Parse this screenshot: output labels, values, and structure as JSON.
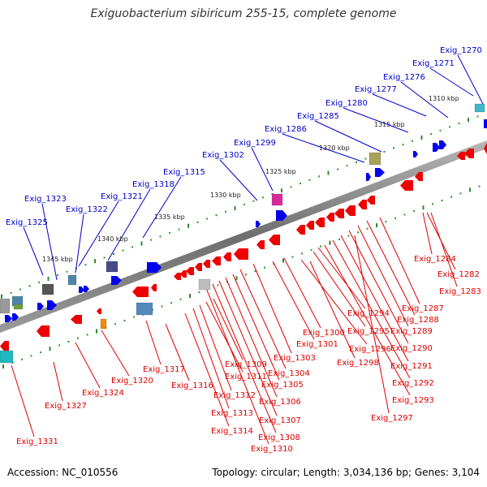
{
  "title": "Exiguobacterium sibiricum 255-15, complete genome",
  "footer": {
    "accession": "Accession: NC_010556",
    "summary": "Topology: circular; Length: 3,034,136 bp; Genes: 3,104"
  },
  "colors": {
    "backbone": "#7a7a7a",
    "tick_minor": "#2a9a2a",
    "tick_major": "#2d8a2d",
    "forward_gene": "#0000ee",
    "reverse_gene": "#ee0000",
    "forward_label": "#0000cc",
    "reverse_label": "#dd0000"
  },
  "scale_labels": [
    "1310 kbp",
    "1315 kbp",
    "1320 kbp",
    "1325 kbp",
    "1330 kbp",
    "1335 kbp",
    "1340 kbp",
    "1345 kbp"
  ],
  "forward_labels": [
    "Exig_1270",
    "Exig_1271",
    "Exig_1276",
    "Exig_1277",
    "Exig_1280",
    "Exig_1285",
    "Exig_1286",
    "Exig_1299",
    "Exig_1302",
    "Exig_1315",
    "Exig_1318",
    "Exig_1321",
    "Exig_1322",
    "Exig_1323",
    "Exig_1325"
  ],
  "reverse_labels": [
    "Exig_1284",
    "Exig_1282",
    "Exig_1283",
    "Exig_1287",
    "Exig_1288",
    "Exig_1289",
    "Exig_1290",
    "Exig_1291",
    "Exig_1292",
    "Exig_1293",
    "Exig_1294",
    "Exig_1295",
    "Exig_1296",
    "Exig_1297",
    "Exig_1298",
    "Exig_1300",
    "Exig_1301",
    "Exig_1303",
    "Exig_1304",
    "Exig_1305",
    "Exig_1306",
    "Exig_1307",
    "Exig_1308",
    "Exig_1309",
    "Exig_1310",
    "Exig_1311",
    "Exig_1312",
    "Exig_1313",
    "Exig_1314",
    "Exig_1316",
    "Exig_1317",
    "Exig_1320",
    "Exig_1324",
    "Exig_1327",
    "Exig_1331"
  ]
}
